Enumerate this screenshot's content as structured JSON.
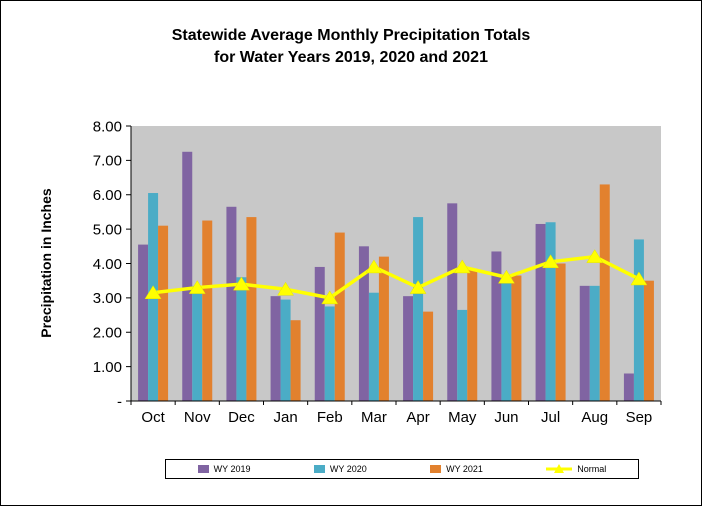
{
  "title": "Statewide Average Monthly Precipitation Totals\nfor Water Years 2019, 2020 and 2021",
  "y_axis_title": "Precipitation  in Inches",
  "chart_data": {
    "type": "bar",
    "categories": [
      "Oct",
      "Nov",
      "Dec",
      "Jan",
      "Feb",
      "Mar",
      "Apr",
      "May",
      "Jun",
      "Jul",
      "Aug",
      "Sep"
    ],
    "series": [
      {
        "name": "WY 2019",
        "type": "bar",
        "color": "#8064A2",
        "values": [
          4.55,
          7.25,
          5.65,
          3.05,
          3.9,
          4.5,
          3.05,
          5.75,
          4.35,
          5.15,
          3.35,
          0.8
        ]
      },
      {
        "name": "WY 2020",
        "type": "bar",
        "color": "#4BACC6",
        "values": [
          6.05,
          3.35,
          3.6,
          2.95,
          2.75,
          3.15,
          5.35,
          2.65,
          3.5,
          5.2,
          3.35,
          4.7
        ]
      },
      {
        "name": "WY 2021",
        "type": "bar",
        "color": "#E2812E",
        "values": [
          5.1,
          5.25,
          5.35,
          2.35,
          4.9,
          4.2,
          2.6,
          3.85,
          3.65,
          4.0,
          6.3,
          3.5
        ]
      },
      {
        "name": "Normal",
        "type": "line",
        "color": "#FFFF00",
        "values": [
          3.15,
          3.3,
          3.4,
          3.25,
          3.0,
          3.9,
          3.3,
          3.9,
          3.6,
          4.05,
          4.2,
          3.55
        ]
      }
    ],
    "ylim": [
      0,
      8
    ],
    "ytick_step": 1,
    "ytick_labels": [
      "-",
      "1.00",
      "2.00",
      "3.00",
      "4.00",
      "5.00",
      "6.00",
      "7.00",
      "8.00"
    ],
    "plot_bg": "#C8C8C8",
    "grid": "off",
    "legend_position": "bottom"
  }
}
